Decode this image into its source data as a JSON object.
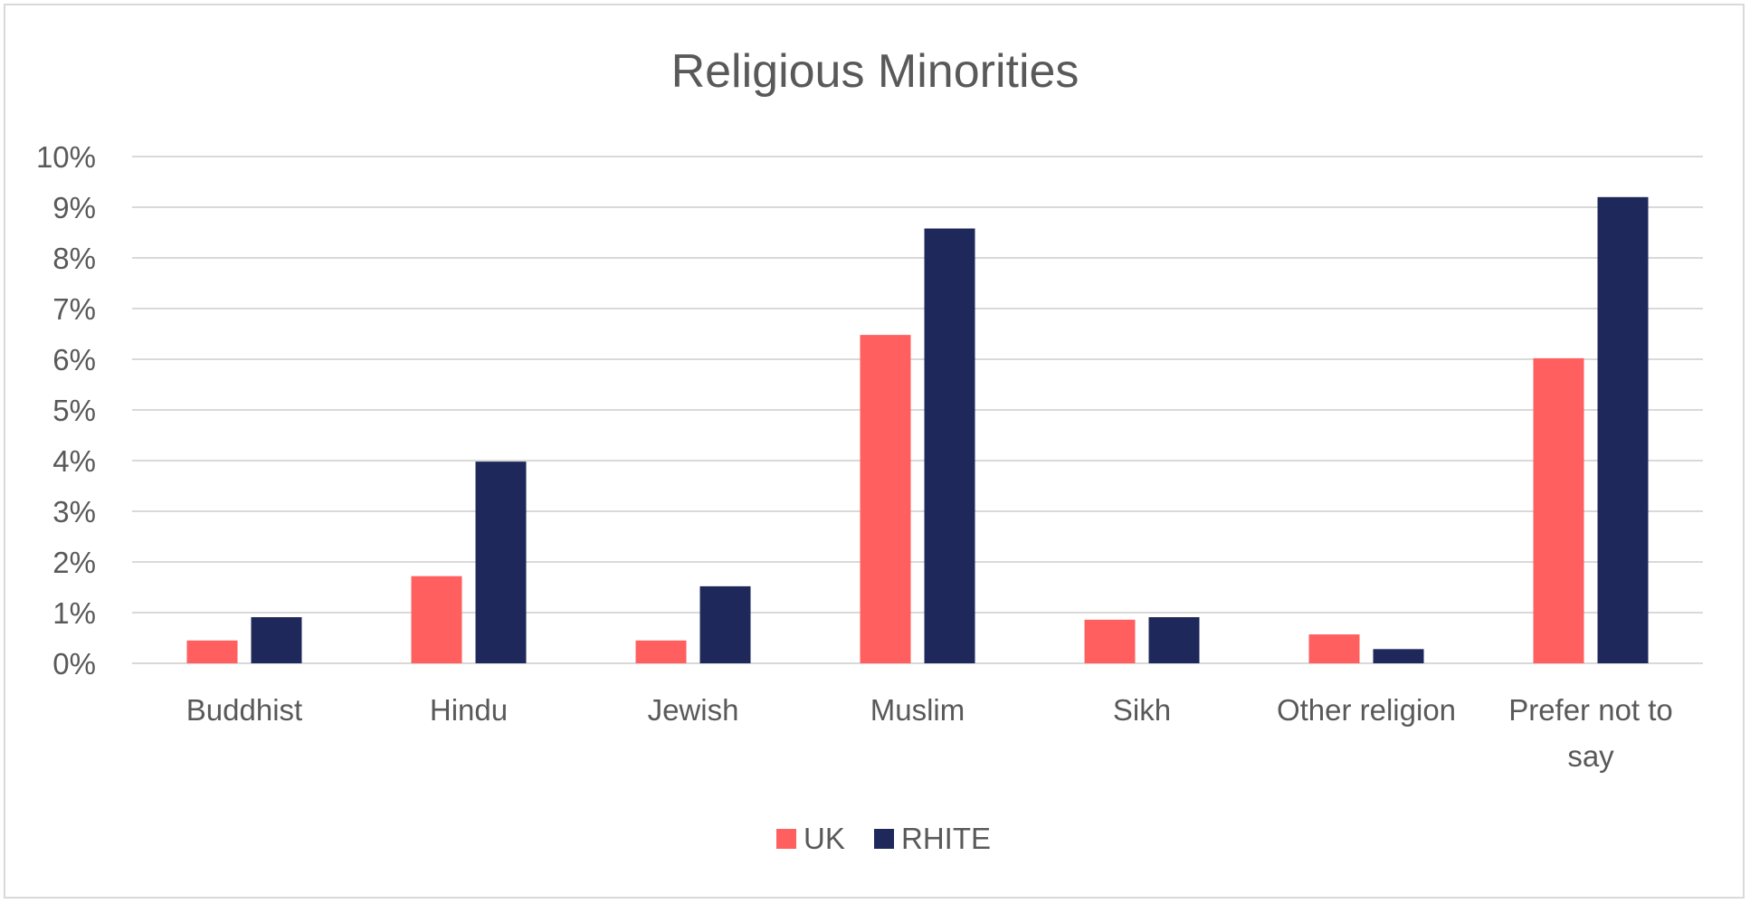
{
  "chart_data": {
    "type": "bar",
    "title": "Religious Minorities",
    "xlabel": "",
    "ylabel": "",
    "categories": [
      [
        "Buddhist"
      ],
      [
        "Hindu"
      ],
      [
        "Jewish"
      ],
      [
        "Muslim"
      ],
      [
        "Sikh"
      ],
      [
        "Other religion"
      ],
      [
        "Prefer not to",
        "say"
      ]
    ],
    "series": [
      {
        "name": "UK",
        "color": "#ff5f5f",
        "values": [
          0.45,
          1.72,
          0.45,
          6.48,
          0.86,
          0.57,
          6.02
        ]
      },
      {
        "name": "RHITE",
        "color": "#1f285a",
        "values": [
          0.91,
          3.98,
          1.52,
          8.58,
          0.91,
          0.28,
          9.2
        ]
      }
    ],
    "ylim": [
      0,
      10
    ],
    "yticks": [
      "0%",
      "1%",
      "2%",
      "3%",
      "4%",
      "5%",
      "6%",
      "7%",
      "8%",
      "9%",
      "10%"
    ],
    "grid": true,
    "legend": "bottom-center"
  }
}
